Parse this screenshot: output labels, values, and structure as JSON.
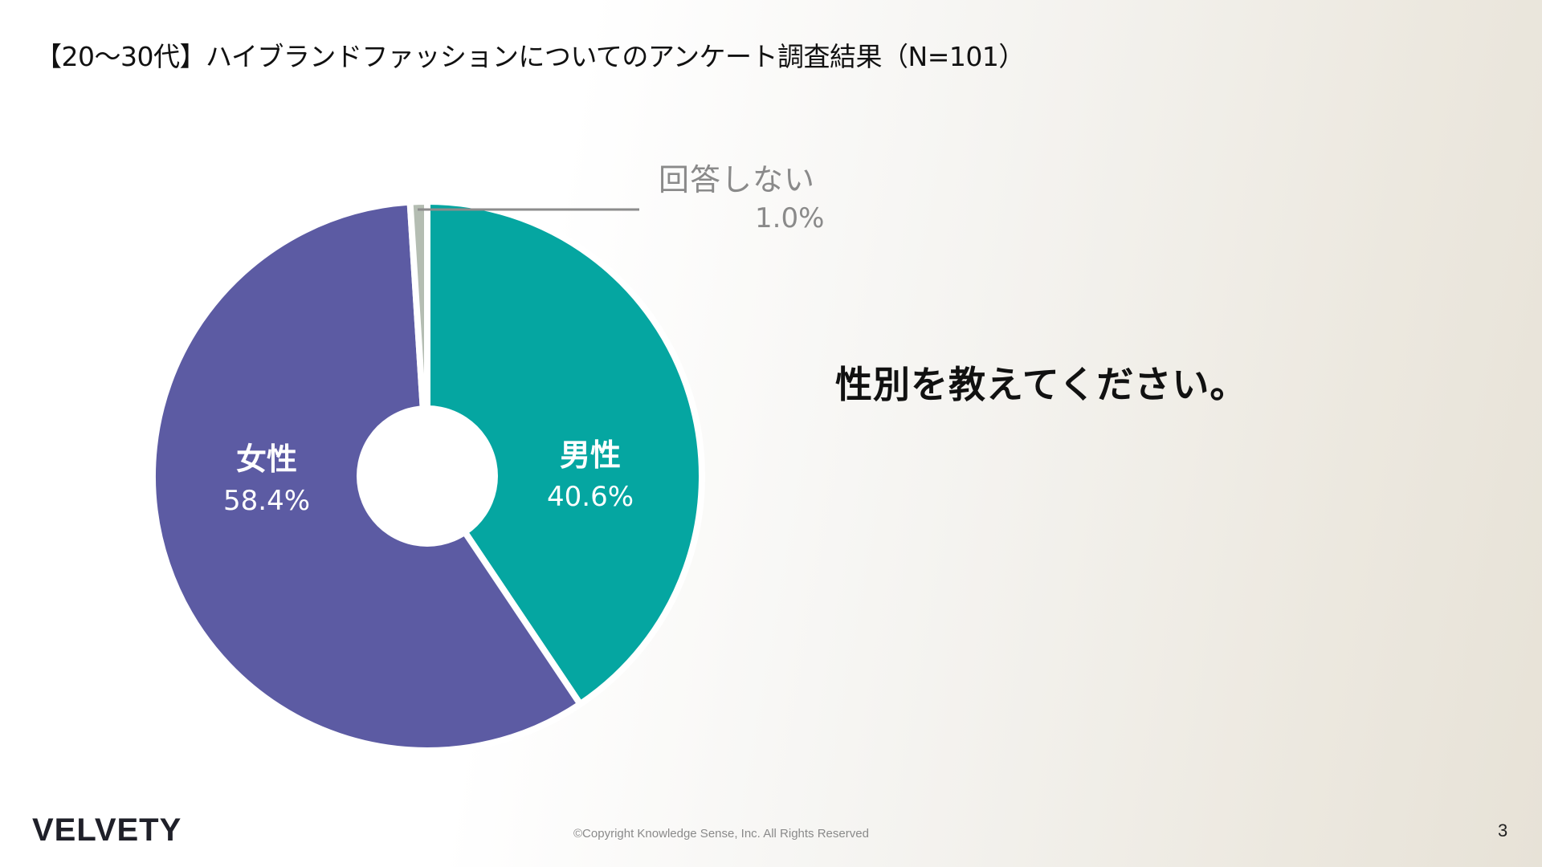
{
  "slide": {
    "title": "【20〜30代】ハイブランドファッションについてのアンケート調査結果（N=101）",
    "question": "性別を教えてください。",
    "logo": "VELVETY",
    "copyright": "©Copyright Knowledge Sense, Inc. All Rights Reserved",
    "page_number": "3",
    "background_colors": [
      "#ffffff",
      "#e7e2d7"
    ]
  },
  "chart_data": {
    "type": "pie",
    "variant": "donut",
    "title": "性別を教えてください。",
    "categories": [
      "男性",
      "女性",
      "回答しない"
    ],
    "values": [
      40.6,
      58.4,
      1.0
    ],
    "labels": [
      "40.6%",
      "58.4%",
      "1.0%"
    ],
    "colors": [
      "#05a6a1",
      "#5c5ba3",
      "#b4bdb2"
    ],
    "start_angle_deg": 0,
    "direction": "clockwise",
    "n": 101,
    "legend": "none",
    "annotations": [
      {
        "category": "回答しない",
        "text": "回答しない",
        "value_text": "1.0%",
        "leader_line": true,
        "color": "#8a8a8a"
      }
    ]
  },
  "labels": {
    "male": {
      "name": "男性",
      "pct": "40.6%"
    },
    "female": {
      "name": "女性",
      "pct": "58.4%"
    },
    "no_answer": {
      "name": "回答しない",
      "pct": "1.0%"
    }
  }
}
